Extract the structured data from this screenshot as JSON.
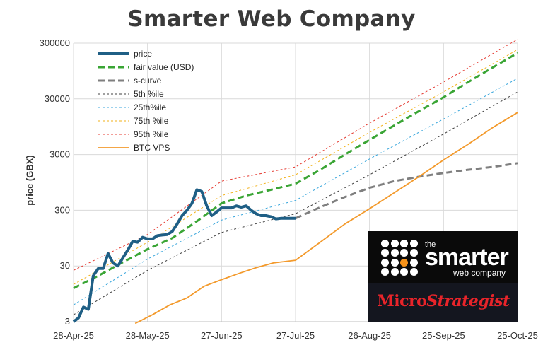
{
  "title": "Smarter Web Company",
  "logo": {
    "the": "the",
    "smarter": "smarter",
    "web_company": "web company",
    "micro": "Micro",
    "strategist": "Strategist"
  },
  "chart_data": {
    "type": "line",
    "title": "Smarter Web Company",
    "ylabel": "price (GBX)",
    "xlabel": "",
    "y_scale": "log",
    "ylim": [
      3,
      300000
    ],
    "y_ticks": [
      3,
      30,
      300,
      3000,
      30000,
      300000
    ],
    "y_tick_labels": [
      "3",
      "30",
      "300",
      "3000",
      "30000",
      "300000"
    ],
    "xlim": [
      "2025-04-28",
      "2025-10-25"
    ],
    "x_ticks": [
      "2025-04-28",
      "2025-05-28",
      "2025-06-27",
      "2025-07-27",
      "2025-08-26",
      "2025-09-25",
      "2025-10-25"
    ],
    "x_tick_labels": [
      "28-Apr-25",
      "28-May-25",
      "27-Jun-25",
      "27-Jul-25",
      "26-Aug-25",
      "25-Sep-25",
      "25-Oct-25"
    ],
    "grid": true,
    "legend_position": "top-left",
    "series": [
      {
        "name": "price",
        "color": "#1f5f85",
        "style": "solid-thick",
        "x": [
          "2025-04-28",
          "2025-04-30",
          "2025-05-02",
          "2025-05-04",
          "2025-05-06",
          "2025-05-08",
          "2025-05-10",
          "2025-05-12",
          "2025-05-14",
          "2025-05-16",
          "2025-05-18",
          "2025-05-20",
          "2025-05-22",
          "2025-05-24",
          "2025-05-26",
          "2025-05-28",
          "2025-05-30",
          "2025-06-01",
          "2025-06-03",
          "2025-06-05",
          "2025-06-07",
          "2025-06-09",
          "2025-06-11",
          "2025-06-13",
          "2025-06-15",
          "2025-06-17",
          "2025-06-19",
          "2025-06-21",
          "2025-06-23",
          "2025-06-25",
          "2025-06-27",
          "2025-06-29",
          "2025-07-01",
          "2025-07-03",
          "2025-07-05",
          "2025-07-07",
          "2025-07-09",
          "2025-07-11",
          "2025-07-13",
          "2025-07-15",
          "2025-07-17",
          "2025-07-19",
          "2025-07-21",
          "2025-07-23",
          "2025-07-25",
          "2025-07-27"
        ],
        "y": [
          3,
          3.5,
          5.5,
          5,
          20,
          27,
          27,
          50,
          34,
          30,
          42,
          58,
          83,
          80,
          98,
          92,
          92,
          105,
          108,
          110,
          125,
          170,
          240,
          300,
          400,
          700,
          650,
          360,
          240,
          280,
          330,
          330,
          330,
          360,
          340,
          360,
          300,
          260,
          240,
          240,
          230,
          210,
          215,
          215,
          215,
          215
        ]
      },
      {
        "name": "fair value (USD)",
        "color": "#3aa535",
        "style": "dashed-thick",
        "x": [
          "2025-04-28",
          "2025-05-08",
          "2025-05-18",
          "2025-05-28",
          "2025-06-07",
          "2025-06-17",
          "2025-06-27",
          "2025-07-07",
          "2025-07-17",
          "2025-07-27",
          "2025-08-06",
          "2025-08-16",
          "2025-08-26",
          "2025-09-05",
          "2025-09-15",
          "2025-09-25",
          "2025-10-05",
          "2025-10-15",
          "2025-10-25"
        ],
        "y": [
          12,
          20,
          35,
          60,
          95,
          190,
          400,
          550,
          700,
          900,
          1600,
          3000,
          5500,
          10000,
          18000,
          32000,
          60000,
          110000,
          200000
        ]
      },
      {
        "name": "s-curve",
        "color": "#7f7f7f",
        "style": "dashed-thick",
        "x": [
          "2025-07-27",
          "2025-08-06",
          "2025-08-16",
          "2025-08-26",
          "2025-09-05",
          "2025-09-15",
          "2025-09-25",
          "2025-10-05",
          "2025-10-15",
          "2025-10-25"
        ],
        "y": [
          215,
          340,
          520,
          760,
          1000,
          1200,
          1400,
          1600,
          1800,
          2100
        ]
      },
      {
        "name": "5th %ile",
        "color": "#404040",
        "style": "dotted",
        "x": [
          "2025-04-28",
          "2025-05-28",
          "2025-06-27",
          "2025-07-27",
          "2025-08-26",
          "2025-09-25",
          "2025-10-25"
        ],
        "y": [
          4,
          25,
          120,
          260,
          1300,
          7000,
          40000
        ]
      },
      {
        "name": "25th%ile",
        "color": "#38a6dc",
        "style": "dotted",
        "x": [
          "2025-04-28",
          "2025-05-28",
          "2025-06-27",
          "2025-07-27",
          "2025-08-26",
          "2025-09-25",
          "2025-10-25"
        ],
        "y": [
          6,
          40,
          200,
          450,
          2500,
          13000,
          70000
        ]
      },
      {
        "name": "75th %ile",
        "color": "#f2b21a",
        "style": "dotted",
        "x": [
          "2025-04-28",
          "2025-05-28",
          "2025-06-27",
          "2025-07-27",
          "2025-08-26",
          "2025-09-25",
          "2025-10-25"
        ],
        "y": [
          14,
          80,
          550,
          1300,
          7500,
          40000,
          230000
        ]
      },
      {
        "name": "95th %ile",
        "color": "#e53b32",
        "style": "dotted",
        "x": [
          "2025-04-28",
          "2025-05-28",
          "2025-06-27",
          "2025-07-27",
          "2025-08-26",
          "2025-09-25",
          "2025-10-25"
        ],
        "y": [
          25,
          110,
          1000,
          1800,
          11000,
          60000,
          350000
        ]
      },
      {
        "name": "BTC VPS",
        "color": "#f39a2c",
        "style": "solid",
        "x": [
          "2025-05-23",
          "2025-05-30",
          "2025-06-06",
          "2025-06-13",
          "2025-06-20",
          "2025-06-27",
          "2025-07-04",
          "2025-07-11",
          "2025-07-18",
          "2025-07-27",
          "2025-08-06",
          "2025-08-16",
          "2025-08-26",
          "2025-09-05",
          "2025-09-15",
          "2025-09-25",
          "2025-10-05",
          "2025-10-15",
          "2025-10-25"
        ],
        "y": [
          2.8,
          4,
          6,
          8,
          13,
          17,
          22,
          28,
          34,
          38,
          80,
          170,
          320,
          620,
          1200,
          2400,
          4600,
          9200,
          17000
        ]
      }
    ]
  }
}
